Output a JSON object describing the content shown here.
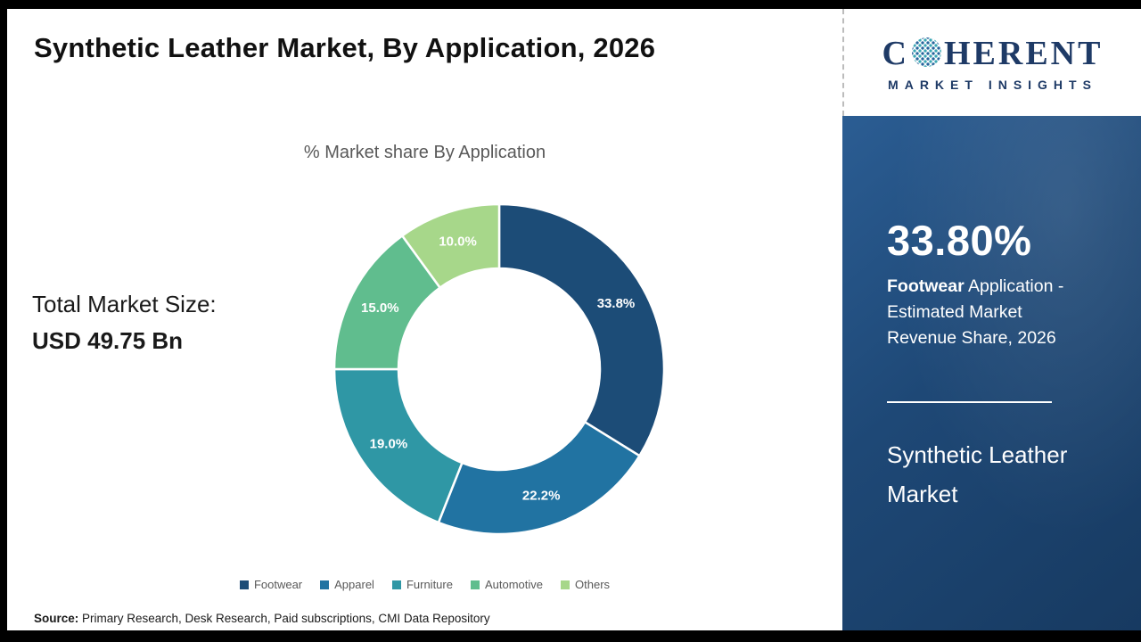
{
  "header": {
    "title": "Synthetic Leather Market, By Application, 2026"
  },
  "logo": {
    "part1": "C",
    "part2": "HERENT",
    "subtitle": "MARKET INSIGHTS"
  },
  "chart_data": {
    "type": "pie",
    "donut": true,
    "title": "% Market share By Application",
    "categories": [
      "Footwear",
      "Apparel",
      "Furniture",
      "Automotive",
      "Others"
    ],
    "values": [
      33.8,
      22.2,
      19.0,
      15.0,
      10.0
    ],
    "labels": [
      "33.8%",
      "22.2%",
      "19.0%",
      "15.0%",
      "10.0%"
    ],
    "colors": [
      "#1c4c77",
      "#2173a2",
      "#2f97a5",
      "#60bd8e",
      "#a7d78a"
    ],
    "legend_position": "bottom",
    "start_angle_deg": 0,
    "direction": "clockwise"
  },
  "left_panel": {
    "total_label": "Total Market Size:",
    "total_value": "USD 49.75 Bn"
  },
  "sidebar": {
    "stat_value": "33.80%",
    "stat_bold": "Footwear",
    "stat_rest": " Application - Estimated Market Revenue Share, 2026",
    "market_name": "Synthetic Leather Market"
  },
  "footer": {
    "source_label": "Source:",
    "source_text": " Primary Research, Desk Research, Paid subscriptions, CMI Data Repository"
  }
}
